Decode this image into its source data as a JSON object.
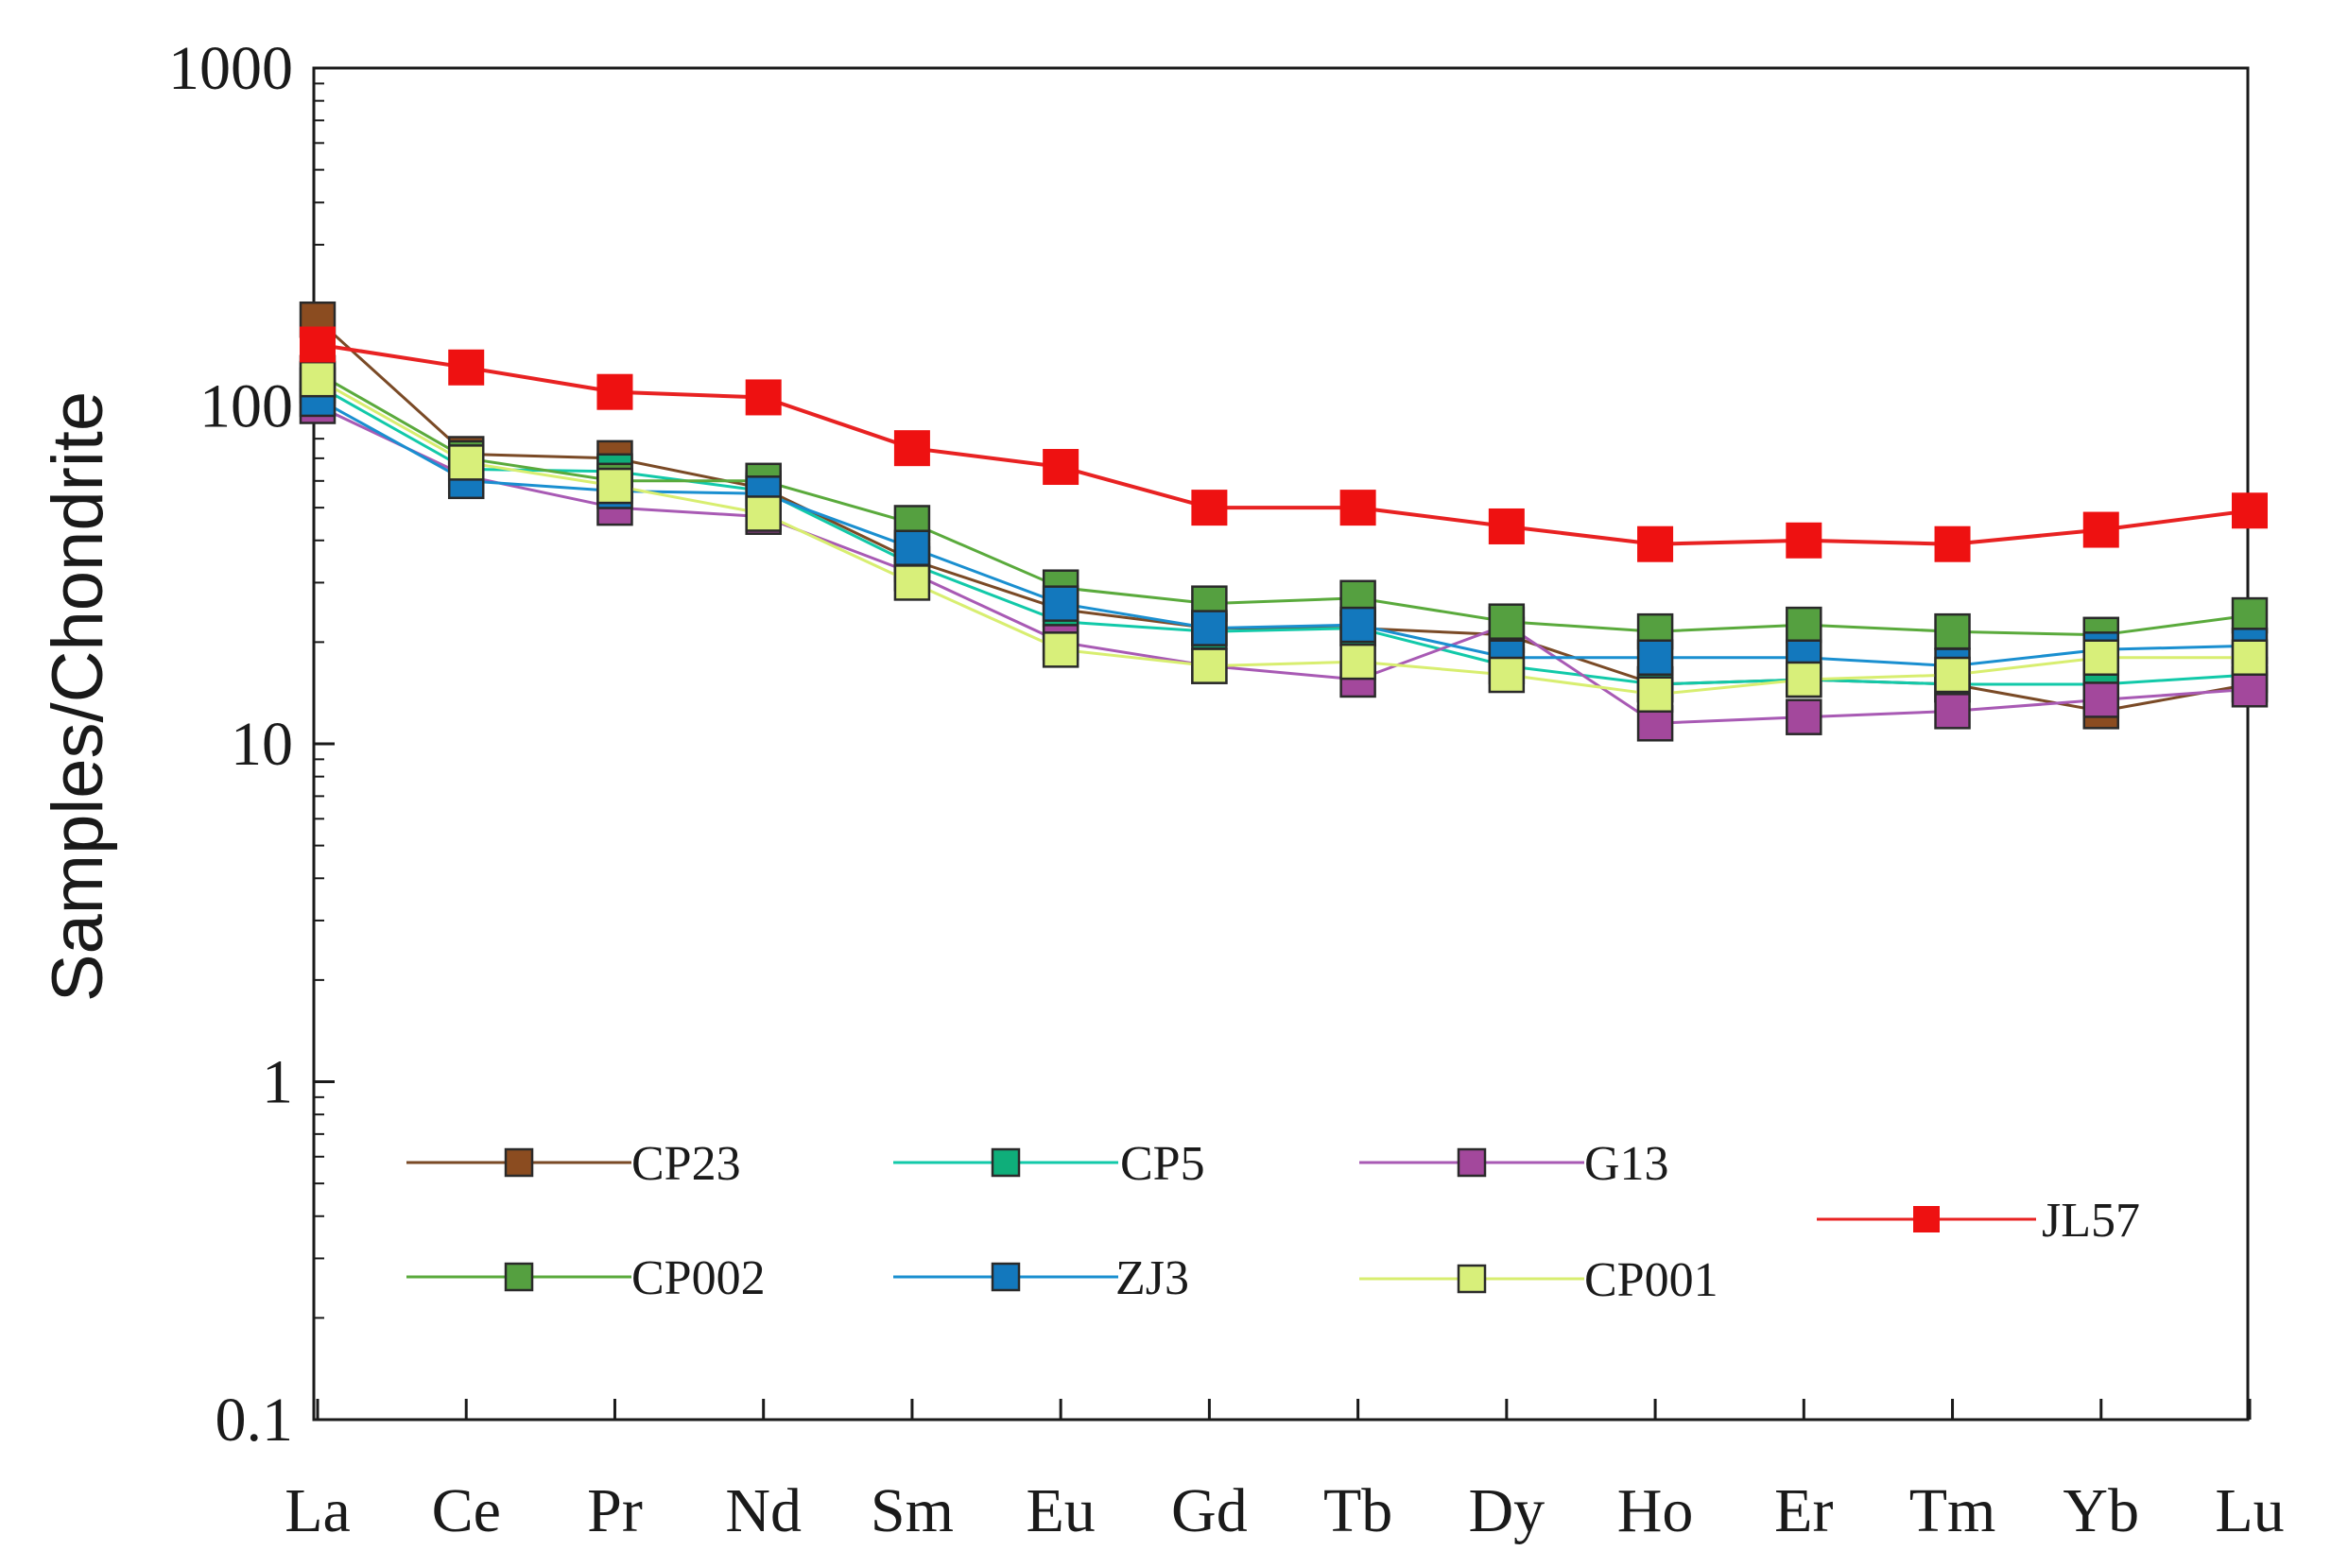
{
  "chart_data": {
    "type": "line",
    "title": "",
    "xlabel": "",
    "ylabel": "Samples/Chondrite",
    "yscale": "log",
    "ylim": [
      0.1,
      1000
    ],
    "yticks": [
      {
        "value": 1000,
        "label": "1000"
      },
      {
        "value": 100,
        "label": "100"
      },
      {
        "value": 10,
        "label": "10"
      },
      {
        "value": 1,
        "label": "1"
      },
      {
        "value": 0.1,
        "label": "0.1"
      }
    ],
    "categories": [
      "La",
      "Ce",
      "Pr",
      "Nd",
      "Sm",
      "Eu",
      "Gd",
      "Tb",
      "Dy",
      "Ho",
      "Er",
      "Tm",
      "Yb",
      "Lu"
    ],
    "grid": false,
    "legend_position": "lower-left",
    "series": [
      {
        "name": "CP23",
        "line_color": "#7a4a26",
        "marker_color": "#8b4c20",
        "values": [
          180,
          72,
          70,
          57,
          35,
          25,
          22,
          22,
          21,
          15,
          15.5,
          15,
          12.5,
          15
        ]
      },
      {
        "name": "CP5",
        "line_color": "#12c9a9",
        "marker_color": "#0fae7a",
        "values": [
          115,
          65,
          64,
          56,
          34,
          23,
          21.5,
          22,
          17,
          15,
          15.5,
          15,
          15,
          16
        ]
      },
      {
        "name": "G13",
        "line_color": "#a85ab4",
        "marker_color": "#a3489c",
        "values": [
          100,
          62,
          50,
          47,
          32,
          20,
          17,
          15.5,
          22.5,
          11.5,
          12,
          12.5,
          13.5,
          14.5
        ]
      },
      {
        "name": "JL57",
        "line_color": "#e82222",
        "marker_color": "#ee1111",
        "values": [
          152,
          130,
          110,
          106,
          75,
          66,
          50,
          50,
          44,
          39,
          40,
          39,
          43,
          49
        ]
      },
      {
        "name": "CP002",
        "line_color": "#5aaa3c",
        "marker_color": "#55a040",
        "values": [
          125,
          70,
          60,
          60,
          45,
          29,
          26,
          27,
          23,
          21.5,
          22.5,
          21.5,
          21,
          24
        ]
      },
      {
        "name": "ZJ3",
        "line_color": "#1a8fd0",
        "marker_color": "#1378bd",
        "values": [
          105,
          60,
          56,
          55,
          38,
          26,
          22,
          22.5,
          18,
          18,
          18,
          17,
          19,
          19.5
        ]
      },
      {
        "name": "CP001",
        "line_color": "#d8ee70",
        "marker_color": "#d8ef7a",
        "values": [
          120,
          68,
          58,
          48,
          30,
          19,
          17,
          17.5,
          16,
          14,
          15.5,
          16,
          18,
          18
        ]
      }
    ]
  }
}
